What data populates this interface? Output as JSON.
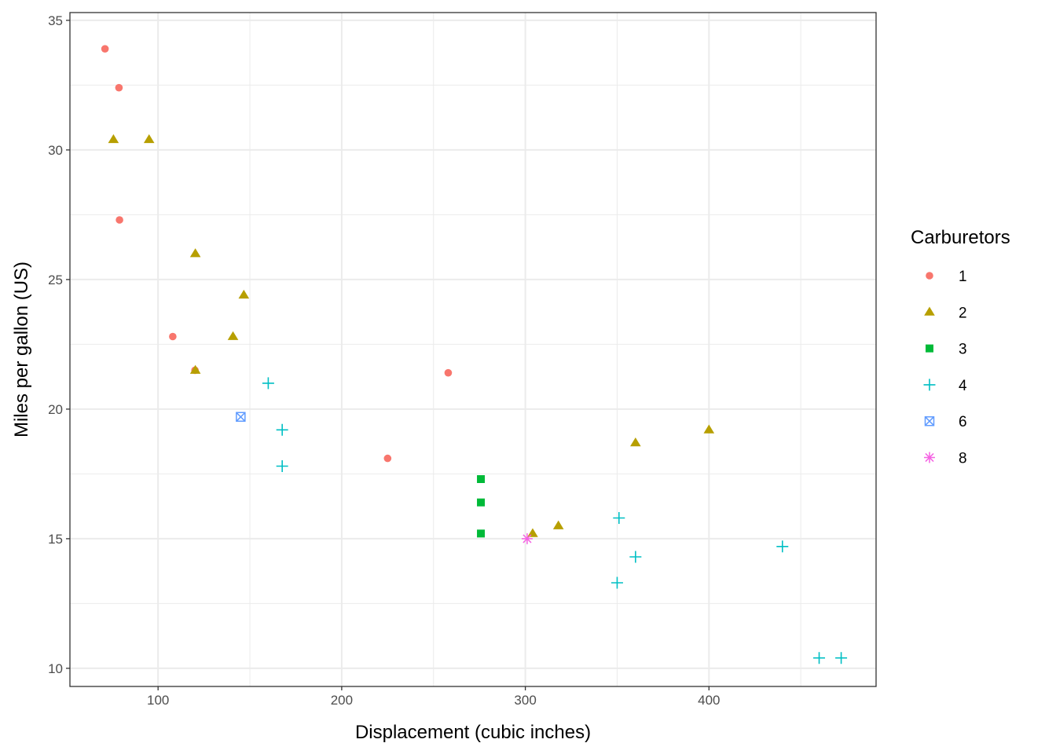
{
  "chart_data": {
    "type": "scatter",
    "title": "",
    "xlabel": "Displacement (cubic inches)",
    "ylabel": "Miles per gallon (US)",
    "xlim": [
      52,
      491
    ],
    "ylim": [
      9.3,
      35.3
    ],
    "x_ticks": [
      100,
      200,
      300,
      400
    ],
    "y_ticks": [
      10,
      15,
      20,
      25,
      30,
      35
    ],
    "grid": true,
    "legend": {
      "title": "Carburetors",
      "position": "right"
    },
    "series": [
      {
        "name": "1",
        "shape": "circle",
        "color": "#F8766D",
        "points": [
          [
            71.1,
            33.9
          ],
          [
            78.7,
            32.4
          ],
          [
            79.0,
            27.3
          ],
          [
            108.0,
            22.8
          ],
          [
            120.1,
            21.5
          ],
          [
            258.0,
            21.4
          ],
          [
            225.0,
            18.1
          ]
        ]
      },
      {
        "name": "2",
        "shape": "triangle",
        "color": "#B79F00",
        "points": [
          [
            75.7,
            30.4
          ],
          [
            95.1,
            30.4
          ],
          [
            120.3,
            26.0
          ],
          [
            146.7,
            24.4
          ],
          [
            140.8,
            22.8
          ],
          [
            120.3,
            21.5
          ],
          [
            360.0,
            18.7
          ],
          [
            400.0,
            19.2
          ],
          [
            304.0,
            15.2
          ],
          [
            318.0,
            15.5
          ]
        ]
      },
      {
        "name": "3",
        "shape": "square",
        "color": "#00BA38",
        "points": [
          [
            275.8,
            17.3
          ],
          [
            275.8,
            16.4
          ],
          [
            275.8,
            15.2
          ]
        ]
      },
      {
        "name": "4",
        "shape": "plus",
        "color": "#00BFC4",
        "points": [
          [
            160.0,
            21.0
          ],
          [
            167.6,
            19.2
          ],
          [
            167.6,
            17.8
          ],
          [
            351.0,
            15.8
          ],
          [
            360.0,
            14.3
          ],
          [
            350.0,
            13.3
          ],
          [
            440.0,
            14.7
          ],
          [
            460.0,
            10.4
          ],
          [
            472.0,
            10.4
          ]
        ]
      },
      {
        "name": "6",
        "shape": "square-cross",
        "color": "#619CFF",
        "points": [
          [
            145.0,
            19.7
          ]
        ]
      },
      {
        "name": "8",
        "shape": "asterisk",
        "color": "#F564E3",
        "points": [
          [
            301.0,
            15.0
          ]
        ]
      }
    ]
  }
}
